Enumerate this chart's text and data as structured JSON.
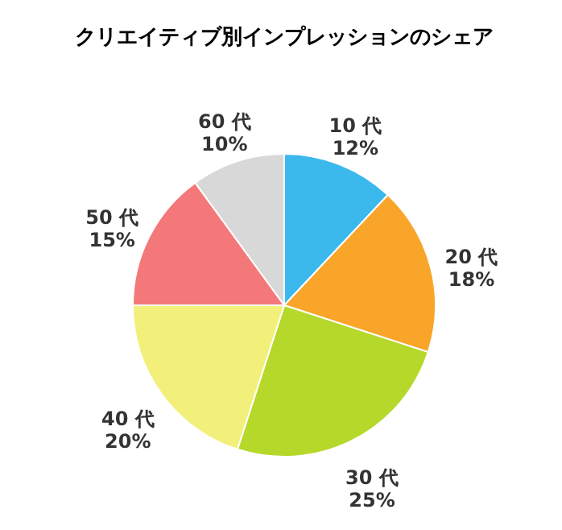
{
  "chart_data": {
    "type": "pie",
    "title": "クリエイティブ別インプレッションのシェア",
    "categories": [
      "10 代",
      "20 代",
      "30 代",
      "40 代",
      "50 代",
      "60 代"
    ],
    "values": [
      12,
      18,
      25,
      20,
      15,
      10
    ],
    "value_labels": [
      "12%",
      "18%",
      "25%",
      "20%",
      "15%",
      "10%"
    ],
    "colors": [
      "#3bb8ec",
      "#f9a52a",
      "#b5d82a",
      "#f2f07a",
      "#f4787a",
      "#d8d8d8"
    ]
  }
}
